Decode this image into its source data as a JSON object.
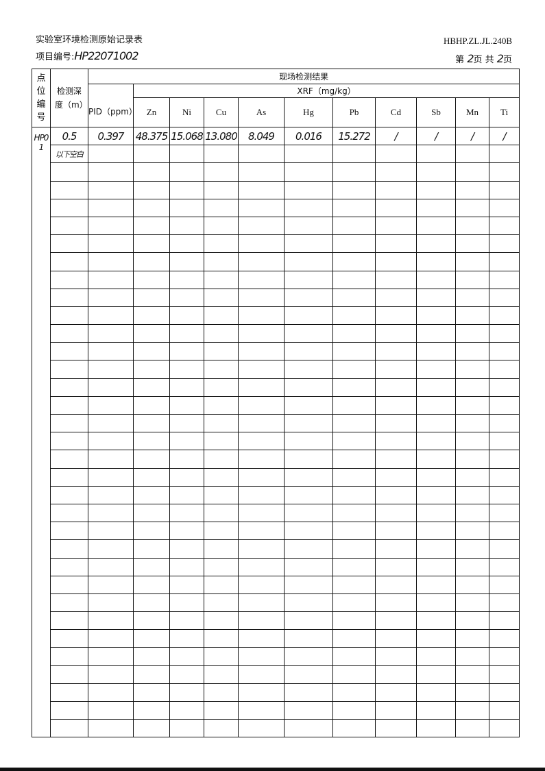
{
  "doc": {
    "title": "实验室环境检测原始记录表",
    "project_label": "项目编号:",
    "project_no": "HP22071002",
    "form_code": "HBHP.ZL.JL.240B",
    "page_prefix": "第",
    "page_no": "2",
    "page_mid": "页 共",
    "page_total": "2",
    "page_suffix": "页"
  },
  "table": {
    "h_point": "点位编号",
    "h_depth": "检测深度（m）",
    "h_results": "现场检测结果",
    "h_xrf": "XRF（mg/kg）",
    "h_pid": "PID（ppm）",
    "elements": [
      "Zn",
      "Ni",
      "Cu",
      "As",
      "Hg",
      "Pb",
      "Cd",
      "Sb",
      "Mn",
      "Ti"
    ],
    "point": "HP01",
    "rows": [
      {
        "depth": "0.5",
        "pid": "0.397",
        "values": [
          "48.375",
          "15.068",
          "13.080",
          "8.049",
          "0.016",
          "15.272",
          "/",
          "/",
          "/",
          "/"
        ]
      },
      {
        "depth": "以下空白",
        "pid": "",
        "values": [
          "",
          "",
          "",
          "",
          "",
          "",
          "",
          "",
          "",
          ""
        ]
      }
    ]
  }
}
